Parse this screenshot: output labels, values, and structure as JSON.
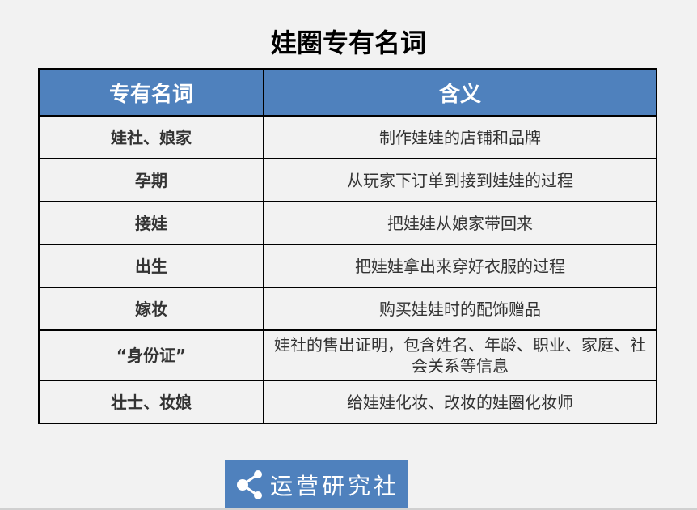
{
  "title": "娃圈专有名词",
  "table": {
    "headers": [
      "专有名词",
      "含义"
    ],
    "rows": [
      {
        "term": "娃社、娘家",
        "meaning": "制作娃娃的店铺和品牌"
      },
      {
        "term": "孕期",
        "meaning": "从玩家下订单到接到娃娃的过程"
      },
      {
        "term": "接娃",
        "meaning": "把娃娃从娘家带回来"
      },
      {
        "term": "出生",
        "meaning": "把娃娃拿出来穿好衣服的过程"
      },
      {
        "term": "嫁妆",
        "meaning": "购买娃娃时的配饰赠品"
      },
      {
        "term": "“身份证”",
        "meaning": "娃社的售出证明，包含姓名、年龄、职业、家庭、社会关系等信息"
      },
      {
        "term": "壮士、妆娘",
        "meaning": "给娃娃化妆、改妆的娃圈化妆师"
      }
    ]
  },
  "watermark": {
    "icon": "share-icon",
    "text": "运营研究社"
  },
  "colors": {
    "header": "#4f81bd",
    "background": "#f2f2f2"
  }
}
